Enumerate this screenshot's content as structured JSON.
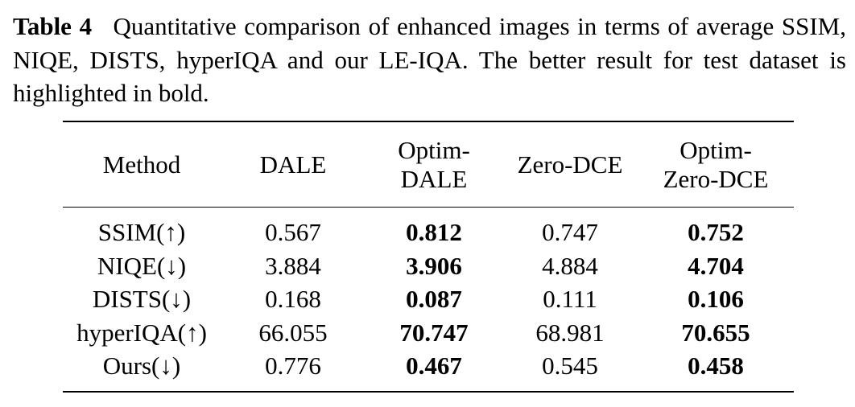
{
  "caption": {
    "label": "Table 4",
    "text": "Quantitative comparison of enhanced images in terms of average SSIM, NIQE, DISTS, hyperIQA and our LE-IQA. The better result for test dataset is highlighted in bold."
  },
  "table": {
    "headers": {
      "method": "Method",
      "dale": "DALE",
      "optim_dale_1": "Optim-",
      "optim_dale_2": "DALE",
      "zero_dce": "Zero-DCE",
      "optim_zero_dce_1": "Optim-",
      "optim_zero_dce_2": "Zero-DCE"
    },
    "rows": [
      {
        "metric": "SSIM(↑)",
        "dale": "0.567",
        "optim_dale": "0.812",
        "zero_dce": "0.747",
        "optim_zero_dce": "0.752"
      },
      {
        "metric": "NIQE(↓)",
        "dale": "3.884",
        "optim_dale": "3.906",
        "zero_dce": "4.884",
        "optim_zero_dce": "4.704"
      },
      {
        "metric": "DISTS(↓)",
        "dale": "0.168",
        "optim_dale": "0.087",
        "zero_dce": "0.111",
        "optim_zero_dce": "0.106"
      },
      {
        "metric": "hyperIQA(↑)",
        "dale": "66.055",
        "optim_dale": "70.747",
        "zero_dce": "68.981",
        "optim_zero_dce": "70.655"
      },
      {
        "metric": "Ours(↓)",
        "dale": "0.776",
        "optim_dale": "0.467",
        "zero_dce": "0.545",
        "optim_zero_dce": "0.458"
      }
    ]
  }
}
